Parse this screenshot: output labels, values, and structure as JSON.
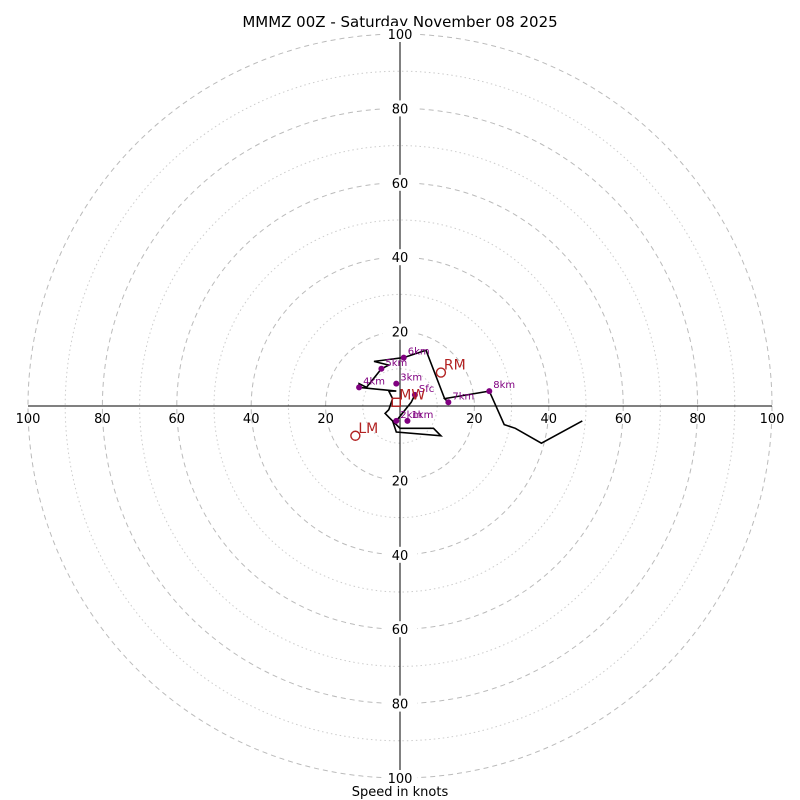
{
  "chart_data": {
    "type": "hodograph",
    "title": "MMMZ 00Z - Saturday November 08 2025",
    "xlabel": "Speed in knots",
    "speed_max": 100,
    "major_rings": [
      20,
      40,
      60,
      80,
      100
    ],
    "minor_rings": [
      10,
      30,
      50,
      70,
      90
    ],
    "tick_labels": {
      "left": [
        "100",
        "80",
        "60",
        "40",
        "20"
      ],
      "right": [
        "20",
        "40",
        "60",
        "80",
        "100"
      ],
      "top": [
        "100",
        "80",
        "60",
        "40",
        "20"
      ],
      "bottom": [
        "20",
        "40",
        "60",
        "80",
        "100"
      ]
    },
    "hodograph_path": [
      [
        4,
        3
      ],
      [
        3,
        1
      ],
      [
        -1,
        -4
      ],
      [
        -2,
        -4
      ],
      [
        -1,
        -7
      ],
      [
        11,
        -8
      ],
      [
        9,
        -6
      ],
      [
        0,
        -6
      ],
      [
        -3,
        -3
      ],
      [
        -4,
        -2
      ],
      [
        -3,
        -1
      ],
      [
        -3,
        -1
      ],
      [
        -2,
        2
      ],
      [
        -3,
        4
      ],
      [
        -1,
        4
      ],
      [
        -11,
        5
      ],
      [
        -11,
        6
      ],
      [
        -9,
        5
      ],
      [
        -5,
        10
      ],
      [
        -5,
        10
      ],
      [
        -3,
        11
      ],
      [
        -7,
        12
      ],
      [
        1,
        13
      ],
      [
        7,
        15
      ],
      [
        12,
        2
      ],
      [
        13,
        1
      ],
      [
        12,
        2
      ],
      [
        24,
        4
      ],
      [
        28,
        -5
      ],
      [
        31,
        -6
      ],
      [
        38,
        -10
      ],
      [
        49,
        -4
      ]
    ],
    "height_points": [
      {
        "label": "Sfc",
        "u": 4,
        "v": 3
      },
      {
        "label": "1km",
        "u": 2,
        "v": -4
      },
      {
        "label": "2km",
        "u": -1,
        "v": -4
      },
      {
        "label": "3km",
        "u": -1,
        "v": 6
      },
      {
        "label": "4km",
        "u": -11,
        "v": 5
      },
      {
        "label": "5km",
        "u": -5,
        "v": 10
      },
      {
        "label": "6km",
        "u": 1,
        "v": 13
      },
      {
        "label": "7km",
        "u": 13,
        "v": 1
      },
      {
        "label": "8km",
        "u": 24,
        "v": 4
      }
    ],
    "storm_motions": [
      {
        "label": "RM",
        "u": 11,
        "v": 9,
        "marker": "circle"
      },
      {
        "label": "LM",
        "u": -12,
        "v": -8,
        "marker": "circle"
      },
      {
        "label": "MW",
        "u": -1,
        "v": 1,
        "marker": "square"
      }
    ],
    "colors": {
      "hodograph_line": "#000000",
      "height_points": "#800080",
      "storm_motion": "#b22222",
      "rings": "#bbbbbb"
    }
  }
}
